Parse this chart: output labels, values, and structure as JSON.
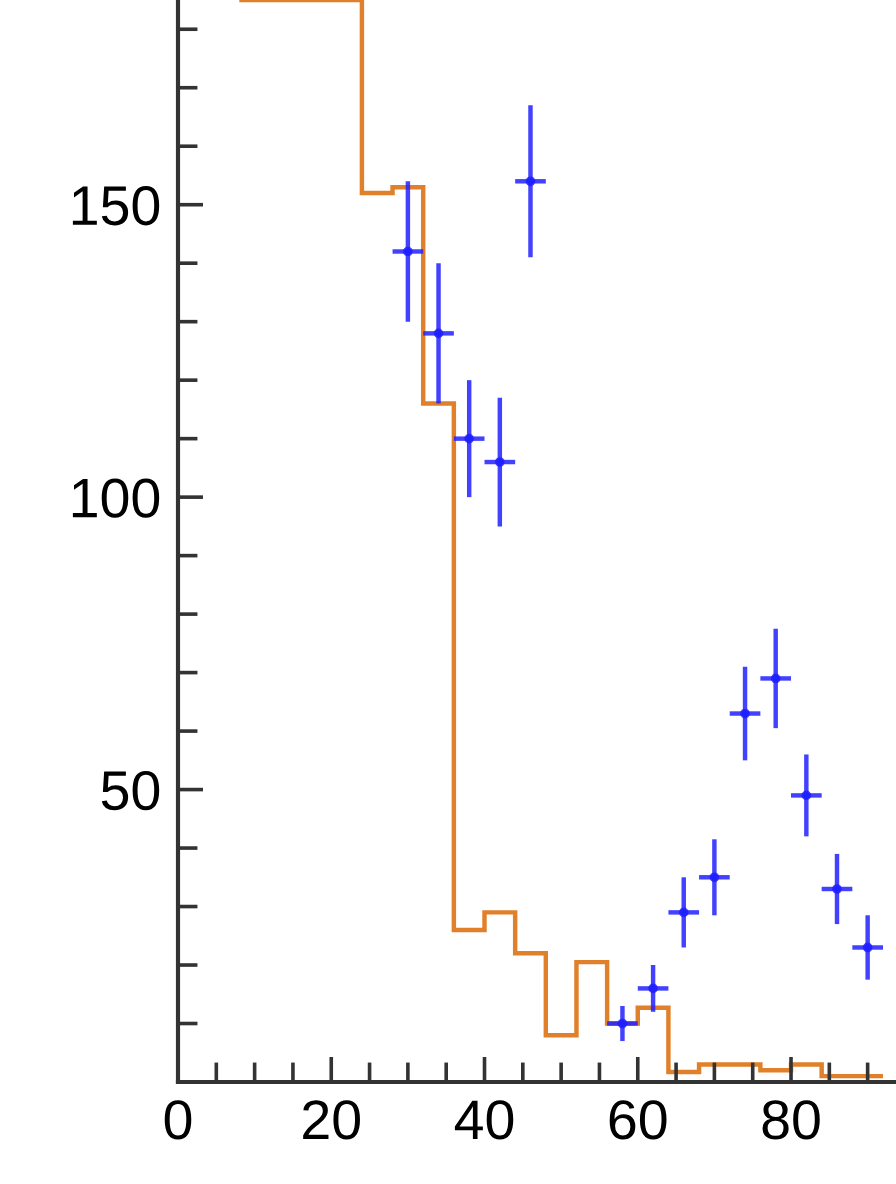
{
  "chart_data": {
    "type": "histogram",
    "xlim": [
      0,
      93.7
    ],
    "ylim": [
      0,
      185
    ],
    "xticks": [
      0,
      {
        "value": 5,
        "label": null
      },
      {
        "value": 10,
        "label": null
      },
      {
        "value": 15,
        "label": null
      },
      20,
      {
        "value": 25,
        "label": null
      },
      {
        "value": 30,
        "label": null
      },
      {
        "value": 35,
        "label": null
      },
      40,
      {
        "value": 45,
        "label": null
      },
      {
        "value": 50,
        "label": null
      },
      {
        "value": 55,
        "label": null
      },
      60,
      {
        "value": 65,
        "label": null
      },
      {
        "value": 70,
        "label": null
      },
      {
        "value": 75,
        "label": null
      },
      80,
      {
        "value": 85,
        "label": null
      },
      {
        "value": 90,
        "label": null
      }
    ],
    "yticks": [
      {
        "value": 10,
        "label": null
      },
      {
        "value": 20,
        "label": null
      },
      {
        "value": 30,
        "label": null
      },
      {
        "value": 40,
        "label": null
      },
      50,
      {
        "value": 60,
        "label": null
      },
      {
        "value": 70,
        "label": null
      },
      {
        "value": 80,
        "label": null
      },
      {
        "value": 90,
        "label": null
      },
      100,
      {
        "value": 110,
        "label": null
      },
      {
        "value": 120,
        "label": null
      },
      {
        "value": 130,
        "label": null
      },
      {
        "value": 140,
        "label": null
      },
      150,
      {
        "value": 160,
        "label": null
      },
      {
        "value": 170,
        "label": null
      },
      {
        "value": 180,
        "label": null
      }
    ],
    "series": [
      {
        "color": "#e0802a",
        "bins": [
          8,
          24,
          28,
          32,
          36,
          40,
          44,
          48,
          52,
          56,
          60,
          64,
          68,
          72,
          76,
          80,
          84,
          88,
          92
        ],
        "values": [
          185,
          152,
          153,
          116,
          26,
          29,
          22,
          8,
          20.5,
          10,
          12.7,
          1.7,
          3,
          3,
          2,
          3,
          1,
          1
        ]
      },
      {
        "type": "scatter",
        "color": "#2020ff",
        "x": [
          30,
          34,
          38,
          42,
          46,
          58,
          62,
          66,
          70,
          74,
          78,
          82,
          86,
          90
        ],
        "values": [
          142,
          128,
          110,
          106,
          154,
          10,
          16,
          29,
          35,
          63,
          69,
          49,
          33,
          23
        ],
        "errors": [
          12,
          12,
          10,
          11,
          13,
          3,
          4,
          6,
          6.5,
          8,
          8.5,
          7,
          6,
          5.5
        ],
        "xerrors": [
          2,
          2,
          2,
          2,
          2,
          2,
          2,
          2,
          2,
          2,
          2,
          2,
          2,
          2
        ]
      }
    ]
  }
}
